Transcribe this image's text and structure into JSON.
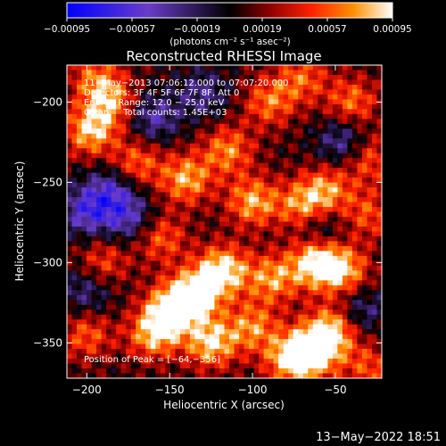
{
  "chart_data": {
    "type": "heatmap",
    "title": "Reconstructed RHESSI Image",
    "xlabel": "Heliocentric X (arcsec)",
    "ylabel": "Heliocentric Y (arcsec)",
    "xlim": [
      -212,
      -22
    ],
    "ylim": [
      -372,
      -177
    ],
    "xticks": [
      -200,
      -150,
      -100,
      -50
    ],
    "yticks": [
      -200,
      -250,
      -300,
      -350
    ],
    "xtick_labels": [
      "−200",
      "−150",
      "−100",
      "−50"
    ],
    "ytick_labels": [
      "−200",
      "−250",
      "−300",
      "−350"
    ],
    "grid": false,
    "colorbar": {
      "range": [
        -0.00095,
        0.00095
      ],
      "ticks": [
        -0.00095,
        -0.00057,
        -0.00019,
        0.00019,
        0.00057,
        0.00095
      ],
      "tick_labels": [
        "−0.00095",
        "−0.00057",
        "−0.00019",
        "0.00019",
        "0.00057",
        "0.00095"
      ],
      "unit_label": "(photons cm⁻² s⁻¹ asec⁻²)",
      "colors": [
        "#0000ff",
        "#6a3cc8",
        "#000000",
        "#8b0000",
        "#ff2000",
        "#ff9000",
        "#ffffff"
      ]
    },
    "annotations": [
      "11−May−2013 07:06:12.000 to 07:07:20.000",
      "Detectors: 3F 4F 5F 6F 7F 8F, Att 0",
      "Energy Range: 12.0 − 25.0 keV",
      "Clean     Total counts: 1.45E+03"
    ],
    "peak_label": "Position of Peak = [−64,−356]",
    "peak": [
      -64,
      -356
    ],
    "intensity_sources": [
      {
        "x": -135,
        "y": -320,
        "value": 0.00095
      },
      {
        "x": -118,
        "y": -305,
        "value": 0.0009
      },
      {
        "x": -150,
        "y": -330,
        "value": 0.00085
      },
      {
        "x": -125,
        "y": -350,
        "value": 0.0008
      },
      {
        "x": -160,
        "y": -345,
        "value": 0.0007
      },
      {
        "x": -100,
        "y": -340,
        "value": 0.0006
      },
      {
        "x": -88,
        "y": -310,
        "value": 0.00065
      },
      {
        "x": -62,
        "y": -300,
        "value": 0.0009
      },
      {
        "x": -45,
        "y": -305,
        "value": 0.0007
      },
      {
        "x": -64,
        "y": -356,
        "value": 0.00095
      },
      {
        "x": -52,
        "y": -342,
        "value": 0.0008
      },
      {
        "x": -78,
        "y": -360,
        "value": 0.0007
      },
      {
        "x": -100,
        "y": -262,
        "value": 0.0007
      },
      {
        "x": -70,
        "y": -265,
        "value": 0.00065
      },
      {
        "x": -55,
        "y": -255,
        "value": 0.0006
      },
      {
        "x": -140,
        "y": -248,
        "value": 0.0007
      },
      {
        "x": -115,
        "y": -230,
        "value": 0.0006
      },
      {
        "x": -198,
        "y": -218,
        "value": 0.00075
      },
      {
        "x": -185,
        "y": -200,
        "value": 0.0006
      },
      {
        "x": -170,
        "y": -238,
        "value": 0.00055
      },
      {
        "x": -195,
        "y": -185,
        "value": 0.0005
      },
      {
        "x": -90,
        "y": -200,
        "value": 0.00055
      },
      {
        "x": -70,
        "y": -185,
        "value": 0.0005
      },
      {
        "x": -40,
        "y": -200,
        "value": 0.00055
      },
      {
        "x": -30,
        "y": -235,
        "value": 0.0005
      },
      {
        "x": -155,
        "y": -285,
        "value": 0.0005
      },
      {
        "x": -190,
        "y": -300,
        "value": 0.00045
      },
      {
        "x": -200,
        "y": -345,
        "value": 0.0005
      },
      {
        "x": -30,
        "y": -270,
        "value": 0.00045
      },
      {
        "x": -30,
        "y": -365,
        "value": 0.00045
      },
      {
        "x": -160,
        "y": -210,
        "value": -0.0005
      },
      {
        "x": -130,
        "y": -195,
        "value": -0.0004
      },
      {
        "x": -45,
        "y": -225,
        "value": -0.0005
      },
      {
        "x": -200,
        "y": -268,
        "value": -0.0006
      },
      {
        "x": -175,
        "y": -272,
        "value": -0.0005
      },
      {
        "x": -60,
        "y": -278,
        "value": -0.0004
      },
      {
        "x": -200,
        "y": -318,
        "value": -0.0004
      },
      {
        "x": -35,
        "y": -330,
        "value": -0.0004
      },
      {
        "x": -185,
        "y": -255,
        "value": -0.0005
      }
    ]
  },
  "timestamp": "13−May−2022 18:51"
}
